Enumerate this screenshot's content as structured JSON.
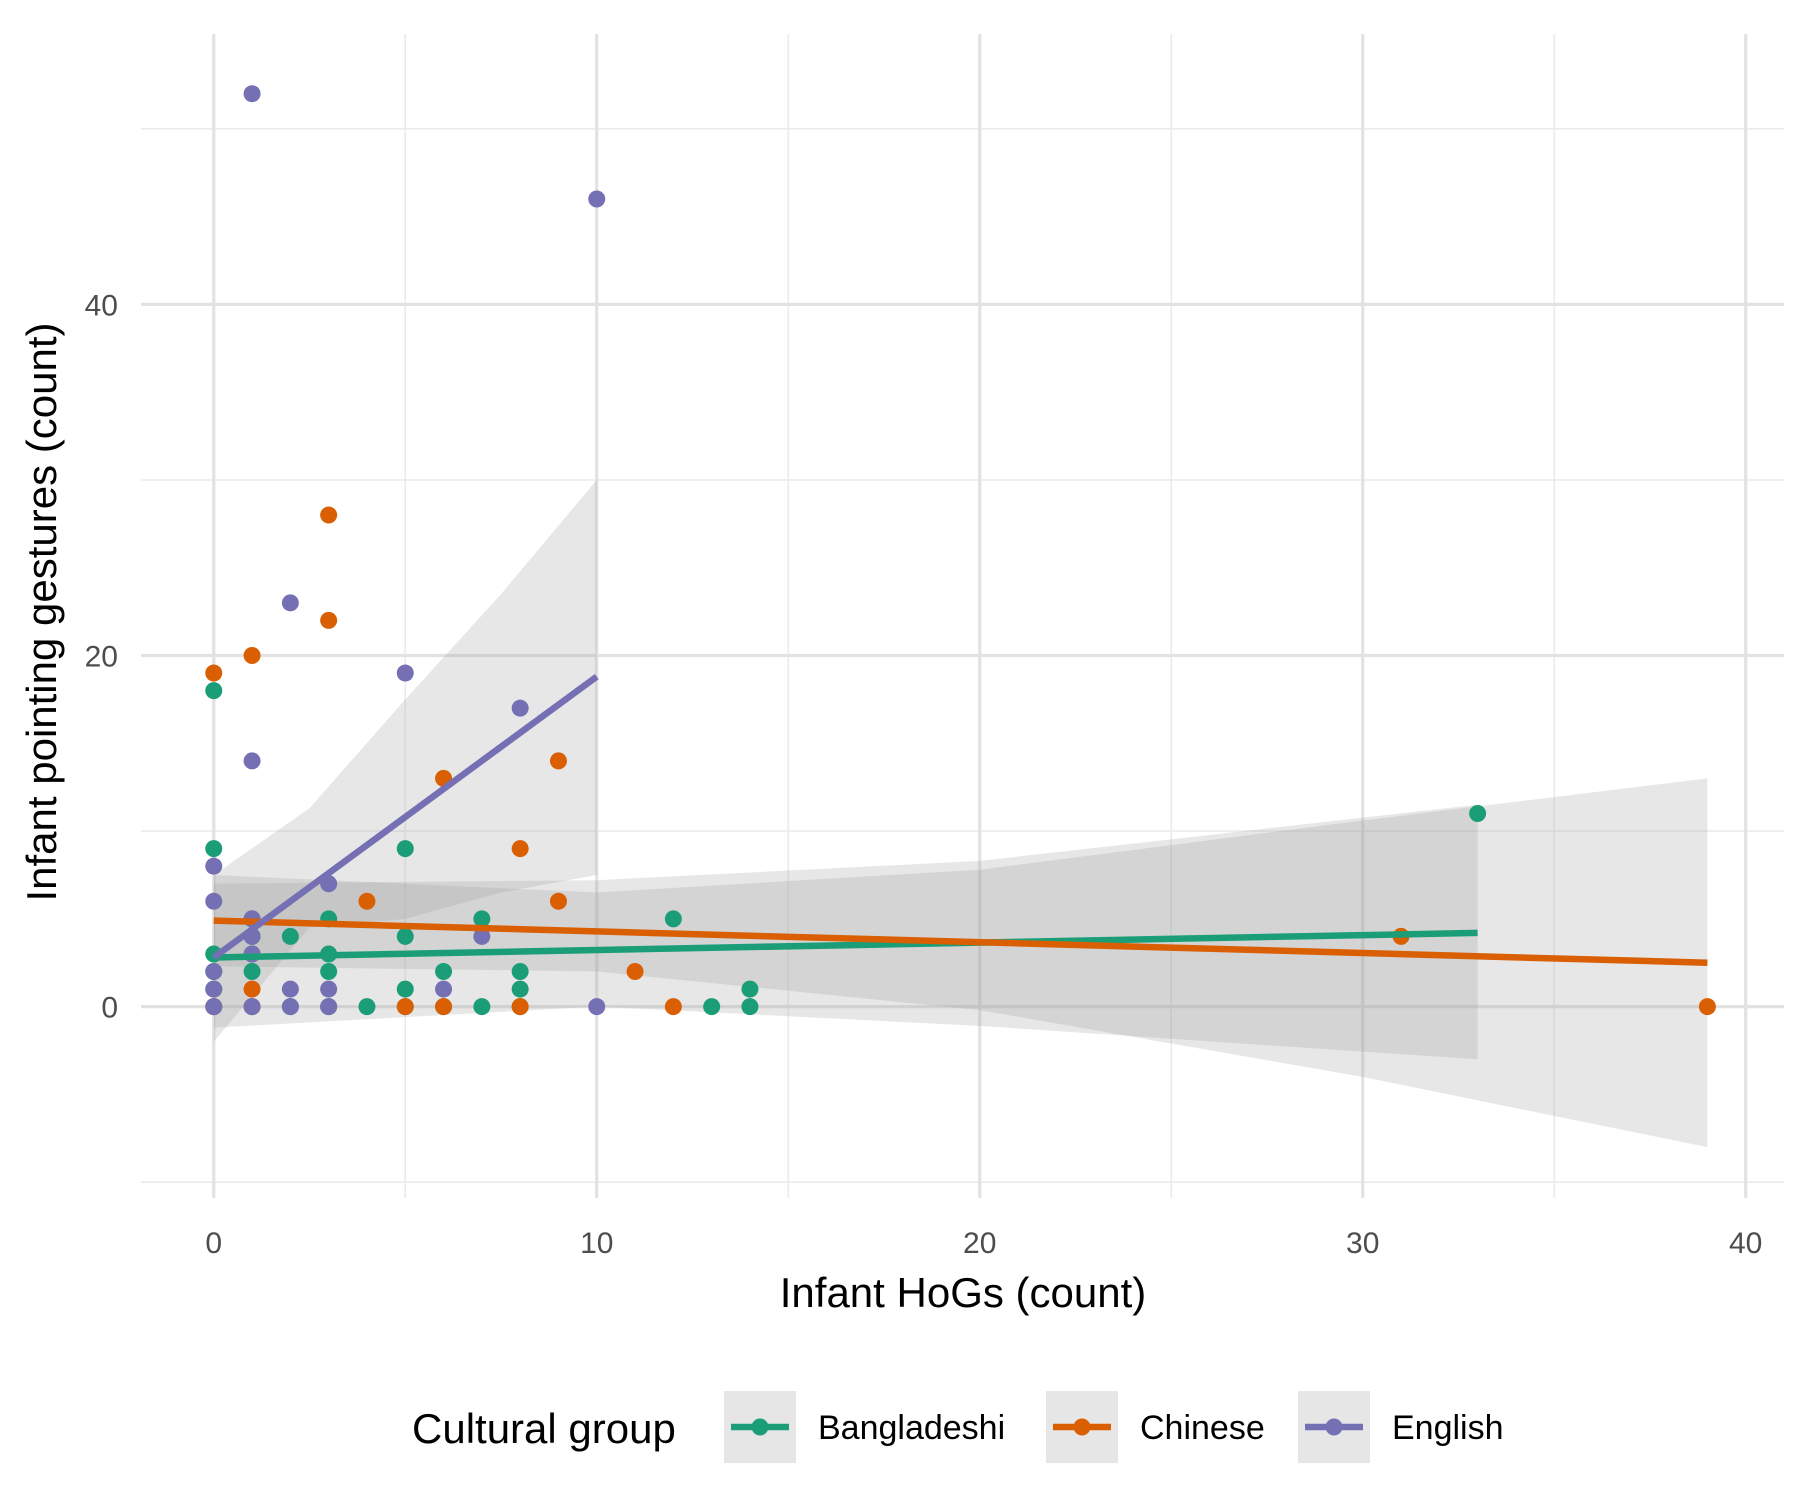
{
  "chart_data": {
    "type": "scatter",
    "xlabel": "Infant HoGs (count)",
    "ylabel": "Infant pointing gestures (count)",
    "xlim": [
      -1.9,
      41
    ],
    "ylim": [
      -10.9,
      55.4
    ],
    "x_ticks": [
      0,
      10,
      20,
      30,
      40
    ],
    "y_ticks": [
      0,
      20,
      40
    ],
    "x_minor": [
      5,
      15,
      25,
      35
    ],
    "y_minor": [
      -10,
      10,
      30,
      50
    ],
    "grid": true,
    "legend": {
      "title": "Cultural group",
      "position": "bottom",
      "entries": [
        "Bangladeshi",
        "Chinese",
        "English"
      ]
    },
    "series": [
      {
        "name": "Bangladeshi",
        "color": "#1b9e77",
        "points": [
          [
            0,
            18
          ],
          [
            0,
            9
          ],
          [
            0,
            3
          ],
          [
            0,
            2
          ],
          [
            0,
            1
          ],
          [
            0,
            0
          ],
          [
            1,
            5
          ],
          [
            1,
            4
          ],
          [
            1,
            3
          ],
          [
            1,
            2
          ],
          [
            1,
            0
          ],
          [
            2,
            4
          ],
          [
            2,
            0
          ],
          [
            3,
            5
          ],
          [
            3,
            3
          ],
          [
            3,
            2
          ],
          [
            3,
            0
          ],
          [
            4,
            0
          ],
          [
            5,
            9
          ],
          [
            5,
            4
          ],
          [
            5,
            1
          ],
          [
            5,
            0
          ],
          [
            6,
            2
          ],
          [
            6,
            0
          ],
          [
            7,
            5
          ],
          [
            7,
            0
          ],
          [
            8,
            2
          ],
          [
            8,
            1
          ],
          [
            8,
            0
          ],
          [
            12,
            5
          ],
          [
            13,
            0
          ],
          [
            14,
            1
          ],
          [
            14,
            0
          ],
          [
            33,
            11
          ]
        ],
        "fit": {
          "x": [
            0,
            33
          ],
          "y": [
            2.8,
            4.2
          ]
        },
        "band": {
          "x": [
            0,
            10,
            20,
            33
          ],
          "upper": [
            7.0,
            7.2,
            8.3,
            11.5
          ],
          "lower": [
            -1.2,
            0.0,
            -1.1,
            -3.0
          ]
        }
      },
      {
        "name": "Chinese",
        "color": "#d95f02",
        "points": [
          [
            0,
            19
          ],
          [
            0,
            0
          ],
          [
            1,
            20
          ],
          [
            1,
            1
          ],
          [
            1,
            0
          ],
          [
            3,
            28
          ],
          [
            3,
            22
          ],
          [
            4,
            6
          ],
          [
            5,
            0
          ],
          [
            6,
            13
          ],
          [
            6,
            0
          ],
          [
            8,
            9
          ],
          [
            8,
            0
          ],
          [
            9,
            14
          ],
          [
            9,
            6
          ],
          [
            11,
            2
          ],
          [
            12,
            0
          ],
          [
            31,
            4
          ],
          [
            39,
            0
          ]
        ],
        "fit": {
          "x": [
            0,
            39
          ],
          "y": [
            4.9,
            2.5
          ]
        },
        "band": {
          "x": [
            0,
            10,
            20,
            30,
            39
          ],
          "upper": [
            7.5,
            6.5,
            7.8,
            10.6,
            13.0
          ],
          "lower": [
            2.3,
            2.0,
            -0.2,
            -4.0,
            -8.0
          ]
        }
      },
      {
        "name": "English",
        "color": "#7570b3",
        "points": [
          [
            0,
            8
          ],
          [
            0,
            6
          ],
          [
            0,
            2
          ],
          [
            0,
            1
          ],
          [
            0,
            0
          ],
          [
            1,
            52
          ],
          [
            1,
            14
          ],
          [
            1,
            5
          ],
          [
            1,
            4
          ],
          [
            1,
            3
          ],
          [
            1,
            0
          ],
          [
            2,
            23
          ],
          [
            2,
            1
          ],
          [
            2,
            0
          ],
          [
            3,
            7
          ],
          [
            3,
            1
          ],
          [
            3,
            0
          ],
          [
            5,
            19
          ],
          [
            6,
            1
          ],
          [
            7,
            4
          ],
          [
            8,
            17
          ],
          [
            10,
            46
          ],
          [
            10,
            0
          ]
        ],
        "fit": {
          "x": [
            0,
            10
          ],
          "y": [
            2.8,
            18.8
          ]
        },
        "band": {
          "x": [
            0,
            2.5,
            5,
            7.5,
            10
          ],
          "upper": [
            7.5,
            11.3,
            17.5,
            23.5,
            30.0
          ],
          "lower": [
            -2.0,
            4.5,
            5.0,
            6.5,
            7.5
          ]
        }
      }
    ]
  }
}
